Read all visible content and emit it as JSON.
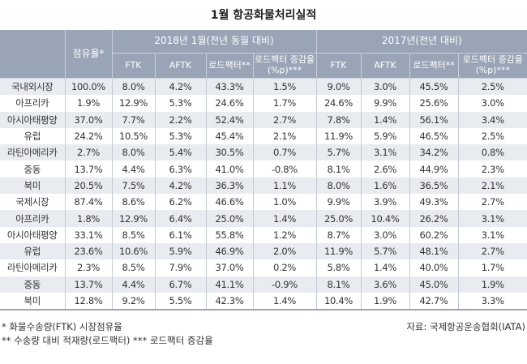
{
  "title": "1월 항공화물처리실적",
  "header": {
    "share": "점유율*",
    "group2018": "2018년 1월(전년 동월 대비)",
    "group2017": "2017년(전년 대비)",
    "cols": [
      "FTK",
      "AFTK",
      "로드팩터**",
      "로드팩터 증감율(%p)***"
    ]
  },
  "rows": [
    [
      "국내외시장",
      "100.0%",
      "8.0%",
      "4.2%",
      "43.3%",
      "1.5%",
      "9.0%",
      "3.0%",
      "45.5%",
      "2.5%"
    ],
    [
      "아프리카",
      "1.9%",
      "12.9%",
      "5.3%",
      "24.6%",
      "1.7%",
      "24.6%",
      "9.9%",
      "25.6%",
      "3.0%"
    ],
    [
      "아시아태평양",
      "37.0%",
      "7.7%",
      "2.2%",
      "52.4%",
      "2.7%",
      "7.8%",
      "1.4%",
      "56.1%",
      "3.4%"
    ],
    [
      "유럽",
      "24.2%",
      "10.5%",
      "5.3%",
      "45.4%",
      "2.1%",
      "11.9%",
      "5.9%",
      "46.5%",
      "2.5%"
    ],
    [
      "라틴아메리카",
      "2.7%",
      "8.0%",
      "5.4%",
      "30.5%",
      "0.7%",
      "5.7%",
      "3.1%",
      "34.2%",
      "0.8%"
    ],
    [
      "중동",
      "13.7%",
      "4.4%",
      "6.3%",
      "41.0%",
      "-0.8%",
      "8.1%",
      "2.6%",
      "44.9%",
      "2.3%"
    ],
    [
      "북미",
      "20.5%",
      "7.5%",
      "4.2%",
      "36.3%",
      "1.1%",
      "8.0%",
      "1.6%",
      "36.5%",
      "2.1%"
    ],
    [
      "국제시장",
      "87.4%",
      "8.6%",
      "6.2%",
      "46.6%",
      "1.0%",
      "9.9%",
      "3.9%",
      "49.3%",
      "2.7%"
    ],
    [
      "아프리카",
      "1.8%",
      "12.9%",
      "6.4%",
      "25.0%",
      "1.4%",
      "25.0%",
      "10.4%",
      "26.2%",
      "3.1%"
    ],
    [
      "아시아태평양",
      "33.1%",
      "8.5%",
      "6.1%",
      "55.8%",
      "1.2%",
      "8.7%",
      "3.0%",
      "60.2%",
      "3.1%"
    ],
    [
      "유럽",
      "23.6%",
      "10.6%",
      "5.9%",
      "46.9%",
      "2.0%",
      "11.9%",
      "5.7%",
      "48.1%",
      "2.7%"
    ],
    [
      "라틴아메리카",
      "2.3%",
      "8.5%",
      "7.9%",
      "37.0%",
      "0.2%",
      "5.8%",
      "1.4%",
      "40.0%",
      "1.7%"
    ],
    [
      "중동",
      "13.7%",
      "4.4%",
      "6.7%",
      "41.1%",
      "-0.9%",
      "8.1%",
      "3.6%",
      "45.0%",
      "1.9%"
    ],
    [
      "북미",
      "12.8%",
      "9.2%",
      "5.5%",
      "42.3%",
      "1.4%",
      "10.4%",
      "1.9%",
      "42.7%",
      "3.3%"
    ]
  ],
  "footnotes": {
    "note1": "* 화물수송량(FTK) 시장점유율",
    "note2": "** 수송량 대비 적재량(로드팩터) *** 로드팩터 증감율",
    "source": "자료: 국제항공운송협회(IATA)"
  }
}
